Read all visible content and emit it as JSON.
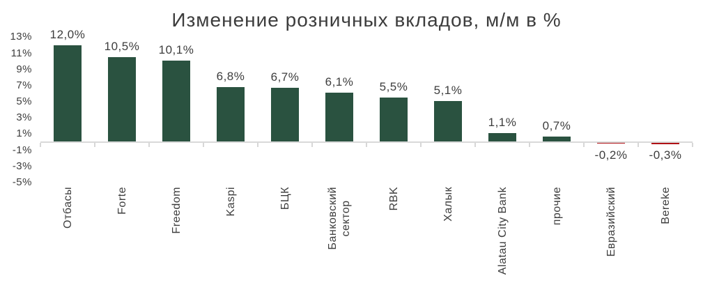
{
  "chart_data": {
    "type": "bar",
    "title": "Изменение розничных вкладов, м/м в %",
    "categories": [
      "Отбасы",
      "Forte",
      "Freedom",
      "Kaspi",
      "БЦК",
      "Банковский\nсектор",
      "RBK",
      "Халык",
      "Alatau City Bank",
      "прочие",
      "Евразийский",
      "Bereke"
    ],
    "values": [
      12.0,
      10.5,
      10.1,
      6.8,
      6.7,
      6.1,
      5.5,
      5.1,
      1.1,
      0.7,
      -0.2,
      -0.3
    ],
    "value_labels": [
      "12,0%",
      "10,5%",
      "10,1%",
      "6,8%",
      "6,7%",
      "6,1%",
      "5,5%",
      "5,1%",
      "1,1%",
      "0,7%",
      "-0,2%",
      "-0,3%"
    ],
    "xlabel": "",
    "ylabel": "",
    "y_axis": {
      "tick_labels": [
        "13%",
        "11%",
        "9%",
        "7%",
        "5%",
        "3%",
        "1%",
        "-1%",
        "-3%",
        "-5%"
      ],
      "tick_values": [
        13,
        11,
        9,
        7,
        5,
        3,
        1,
        -1,
        -3,
        -5
      ]
    },
    "ylim": [
      -5,
      13
    ],
    "grid": false,
    "legend": "none",
    "colors": {
      "positive_bar": "#2a5240",
      "negative_bar": "#b01116",
      "axis_line": "#d9d9d9",
      "text": "#3d3d3d"
    }
  }
}
